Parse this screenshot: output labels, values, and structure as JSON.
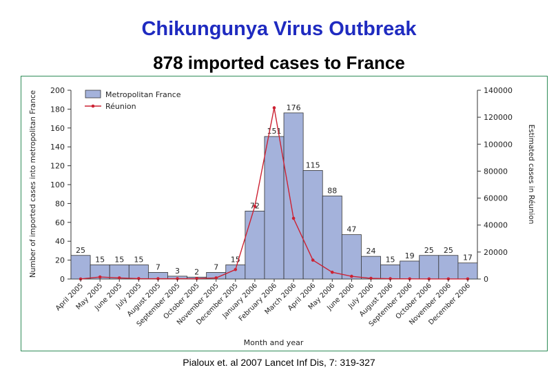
{
  "title": "Chikungunya Virus Outbreak",
  "subtitle": "878 imported cases to France",
  "citation": "Pialoux et. al 2007 Lancet Inf Dis, 7: 319-327",
  "colors": {
    "title": "#1f2bc0",
    "bar_fill": "#a4b2db",
    "bar_stroke": "#333333",
    "line": "#cc2233",
    "frame": "#2e8b57"
  },
  "chart_data": {
    "type": "bar",
    "xlabel": "Month and year",
    "ylabel": "Number of imported cases into metropolitan France",
    "y2label": "Estimated cases in Réunion",
    "ylim": [
      0,
      200
    ],
    "y2lim": [
      0,
      140000
    ],
    "yticks": [
      "0",
      "20",
      "40",
      "60",
      "80",
      "100",
      "120",
      "140",
      "160",
      "180",
      "200"
    ],
    "y2ticks": [
      "0",
      "20000",
      "40000",
      "60000",
      "80000",
      "100000",
      "120000",
      "140000"
    ],
    "legend_position": "top-left",
    "categories": [
      "April 2005",
      "May 2005",
      "June 2005",
      "July 2005",
      "August 2005",
      "September 2005",
      "October 2005",
      "November 2005",
      "December 2005",
      "January 2006",
      "February 2006",
      "March 2006",
      "April 2006",
      "May 2006",
      "June 2006",
      "July 2006",
      "August 2006",
      "September 2006",
      "October 2006",
      "November 2006",
      "December 2006"
    ],
    "series": [
      {
        "name": "Metropolitan France",
        "type": "bar",
        "axis": "left",
        "values": [
          25,
          15,
          15,
          15,
          7,
          3,
          2,
          7,
          15,
          72,
          151,
          176,
          115,
          88,
          47,
          24,
          15,
          19,
          25,
          25,
          17
        ],
        "labels": [
          "25",
          "15",
          "15",
          "15",
          "7",
          "3",
          "2",
          "7",
          "15",
          "72",
          "151",
          "176",
          "115",
          "88",
          "47",
          "24",
          "15",
          "19",
          "25",
          "25",
          "17"
        ]
      },
      {
        "name": "Réunion",
        "type": "line",
        "axis": "right",
        "values": [
          0,
          1500,
          800,
          300,
          200,
          200,
          300,
          800,
          7000,
          54000,
          127000,
          45000,
          14000,
          5000,
          2000,
          500,
          200,
          100,
          50,
          50,
          50
        ]
      }
    ]
  }
}
